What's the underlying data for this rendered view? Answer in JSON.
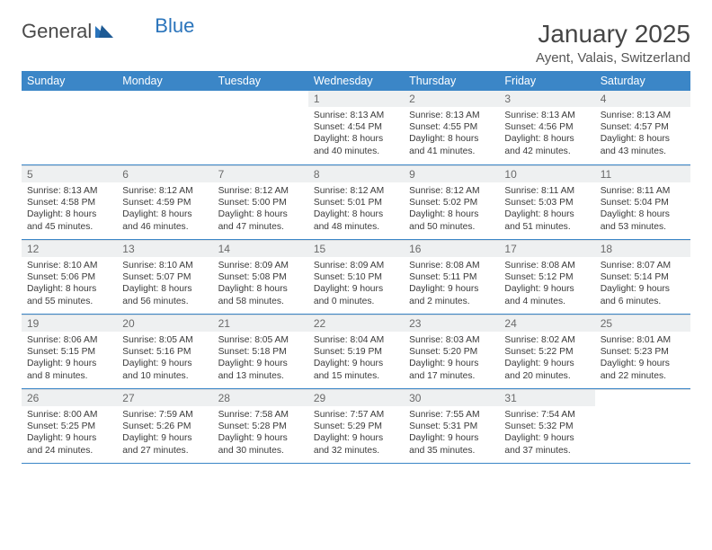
{
  "logo": {
    "part1": "General",
    "part2": "Blue"
  },
  "title": "January 2025",
  "subtitle": "Ayent, Valais, Switzerland",
  "colors": {
    "header_bg": "#3b86c7",
    "header_text": "#ffffff",
    "daynum_bg": "#eef0f1",
    "border": "#3b86c7",
    "logo_gray": "#6b6b6b",
    "logo_blue": "#2a74bb"
  },
  "weekdays": [
    "Sunday",
    "Monday",
    "Tuesday",
    "Wednesday",
    "Thursday",
    "Friday",
    "Saturday"
  ],
  "weeks": [
    [
      {
        "n": "",
        "lines": []
      },
      {
        "n": "",
        "lines": []
      },
      {
        "n": "",
        "lines": []
      },
      {
        "n": "1",
        "lines": [
          "Sunrise: 8:13 AM",
          "Sunset: 4:54 PM",
          "Daylight: 8 hours",
          "and 40 minutes."
        ]
      },
      {
        "n": "2",
        "lines": [
          "Sunrise: 8:13 AM",
          "Sunset: 4:55 PM",
          "Daylight: 8 hours",
          "and 41 minutes."
        ]
      },
      {
        "n": "3",
        "lines": [
          "Sunrise: 8:13 AM",
          "Sunset: 4:56 PM",
          "Daylight: 8 hours",
          "and 42 minutes."
        ]
      },
      {
        "n": "4",
        "lines": [
          "Sunrise: 8:13 AM",
          "Sunset: 4:57 PM",
          "Daylight: 8 hours",
          "and 43 minutes."
        ]
      }
    ],
    [
      {
        "n": "5",
        "lines": [
          "Sunrise: 8:13 AM",
          "Sunset: 4:58 PM",
          "Daylight: 8 hours",
          "and 45 minutes."
        ]
      },
      {
        "n": "6",
        "lines": [
          "Sunrise: 8:12 AM",
          "Sunset: 4:59 PM",
          "Daylight: 8 hours",
          "and 46 minutes."
        ]
      },
      {
        "n": "7",
        "lines": [
          "Sunrise: 8:12 AM",
          "Sunset: 5:00 PM",
          "Daylight: 8 hours",
          "and 47 minutes."
        ]
      },
      {
        "n": "8",
        "lines": [
          "Sunrise: 8:12 AM",
          "Sunset: 5:01 PM",
          "Daylight: 8 hours",
          "and 48 minutes."
        ]
      },
      {
        "n": "9",
        "lines": [
          "Sunrise: 8:12 AM",
          "Sunset: 5:02 PM",
          "Daylight: 8 hours",
          "and 50 minutes."
        ]
      },
      {
        "n": "10",
        "lines": [
          "Sunrise: 8:11 AM",
          "Sunset: 5:03 PM",
          "Daylight: 8 hours",
          "and 51 minutes."
        ]
      },
      {
        "n": "11",
        "lines": [
          "Sunrise: 8:11 AM",
          "Sunset: 5:04 PM",
          "Daylight: 8 hours",
          "and 53 minutes."
        ]
      }
    ],
    [
      {
        "n": "12",
        "lines": [
          "Sunrise: 8:10 AM",
          "Sunset: 5:06 PM",
          "Daylight: 8 hours",
          "and 55 minutes."
        ]
      },
      {
        "n": "13",
        "lines": [
          "Sunrise: 8:10 AM",
          "Sunset: 5:07 PM",
          "Daylight: 8 hours",
          "and 56 minutes."
        ]
      },
      {
        "n": "14",
        "lines": [
          "Sunrise: 8:09 AM",
          "Sunset: 5:08 PM",
          "Daylight: 8 hours",
          "and 58 minutes."
        ]
      },
      {
        "n": "15",
        "lines": [
          "Sunrise: 8:09 AM",
          "Sunset: 5:10 PM",
          "Daylight: 9 hours",
          "and 0 minutes."
        ]
      },
      {
        "n": "16",
        "lines": [
          "Sunrise: 8:08 AM",
          "Sunset: 5:11 PM",
          "Daylight: 9 hours",
          "and 2 minutes."
        ]
      },
      {
        "n": "17",
        "lines": [
          "Sunrise: 8:08 AM",
          "Sunset: 5:12 PM",
          "Daylight: 9 hours",
          "and 4 minutes."
        ]
      },
      {
        "n": "18",
        "lines": [
          "Sunrise: 8:07 AM",
          "Sunset: 5:14 PM",
          "Daylight: 9 hours",
          "and 6 minutes."
        ]
      }
    ],
    [
      {
        "n": "19",
        "lines": [
          "Sunrise: 8:06 AM",
          "Sunset: 5:15 PM",
          "Daylight: 9 hours",
          "and 8 minutes."
        ]
      },
      {
        "n": "20",
        "lines": [
          "Sunrise: 8:05 AM",
          "Sunset: 5:16 PM",
          "Daylight: 9 hours",
          "and 10 minutes."
        ]
      },
      {
        "n": "21",
        "lines": [
          "Sunrise: 8:05 AM",
          "Sunset: 5:18 PM",
          "Daylight: 9 hours",
          "and 13 minutes."
        ]
      },
      {
        "n": "22",
        "lines": [
          "Sunrise: 8:04 AM",
          "Sunset: 5:19 PM",
          "Daylight: 9 hours",
          "and 15 minutes."
        ]
      },
      {
        "n": "23",
        "lines": [
          "Sunrise: 8:03 AM",
          "Sunset: 5:20 PM",
          "Daylight: 9 hours",
          "and 17 minutes."
        ]
      },
      {
        "n": "24",
        "lines": [
          "Sunrise: 8:02 AM",
          "Sunset: 5:22 PM",
          "Daylight: 9 hours",
          "and 20 minutes."
        ]
      },
      {
        "n": "25",
        "lines": [
          "Sunrise: 8:01 AM",
          "Sunset: 5:23 PM",
          "Daylight: 9 hours",
          "and 22 minutes."
        ]
      }
    ],
    [
      {
        "n": "26",
        "lines": [
          "Sunrise: 8:00 AM",
          "Sunset: 5:25 PM",
          "Daylight: 9 hours",
          "and 24 minutes."
        ]
      },
      {
        "n": "27",
        "lines": [
          "Sunrise: 7:59 AM",
          "Sunset: 5:26 PM",
          "Daylight: 9 hours",
          "and 27 minutes."
        ]
      },
      {
        "n": "28",
        "lines": [
          "Sunrise: 7:58 AM",
          "Sunset: 5:28 PM",
          "Daylight: 9 hours",
          "and 30 minutes."
        ]
      },
      {
        "n": "29",
        "lines": [
          "Sunrise: 7:57 AM",
          "Sunset: 5:29 PM",
          "Daylight: 9 hours",
          "and 32 minutes."
        ]
      },
      {
        "n": "30",
        "lines": [
          "Sunrise: 7:55 AM",
          "Sunset: 5:31 PM",
          "Daylight: 9 hours",
          "and 35 minutes."
        ]
      },
      {
        "n": "31",
        "lines": [
          "Sunrise: 7:54 AM",
          "Sunset: 5:32 PM",
          "Daylight: 9 hours",
          "and 37 minutes."
        ]
      },
      {
        "n": "",
        "lines": []
      }
    ]
  ]
}
